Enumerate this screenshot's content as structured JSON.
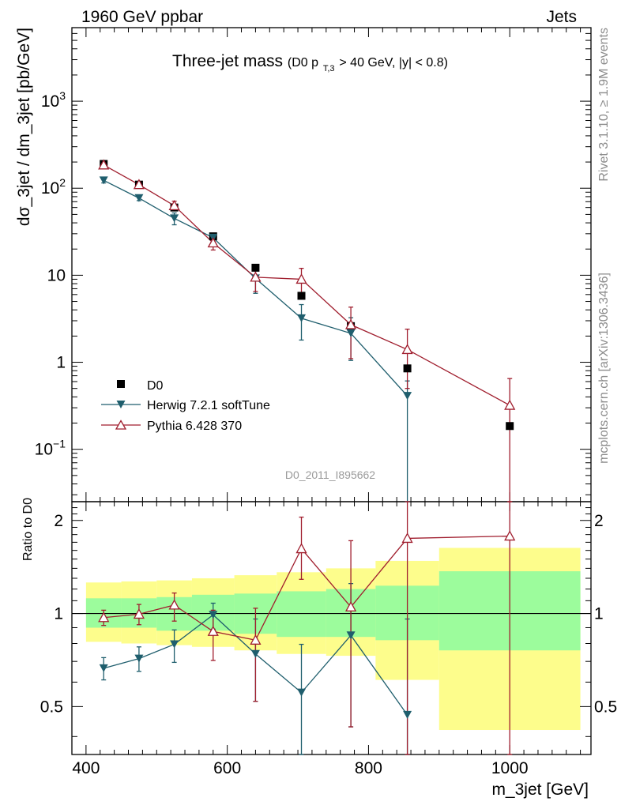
{
  "header": {
    "left": "1960 GeV ppbar",
    "right": "Jets",
    "side_right_top": "Rivet 3.1.10, ≥ 1.9M events",
    "side_right_bottom": "mcplots.cern.ch [arXiv:1306.3436]"
  },
  "chart_data": {
    "type": "scatter",
    "title": "Three-jet mass",
    "subtitle_prefix": "(D0 p",
    "subtitle_sub": "T,3",
    "subtitle_suffix": " > 40 GeV, |y| < 0.8)",
    "xlabel": "m_3jet [GeV]",
    "ylabel": "dσ_3jet / dm_3jet [pb/GeV]",
    "ratio_ylabel": "Ratio to D0",
    "watermark": "D0_2011_I895662",
    "xlim": [
      380,
      1115
    ],
    "ylim_main": [
      0.025,
      7000
    ],
    "ylim_ratio": [
      0.35,
      2.3
    ],
    "x_ticks": [
      400,
      600,
      800,
      1000
    ],
    "x_tick_labels": [
      "400",
      "600",
      "800",
      "1000"
    ],
    "y_main_ticks": [
      {
        "value": 1000,
        "base": "10",
        "exp": "3"
      },
      {
        "value": 100,
        "base": "10",
        "exp": "2"
      },
      {
        "value": 10,
        "label": "10"
      },
      {
        "value": 1,
        "label": "1"
      },
      {
        "value": 0.1,
        "base": "10",
        "exp": "−1"
      }
    ],
    "y_ratio_ticks": [
      {
        "value": 2,
        "label": "2"
      },
      {
        "value": 1,
        "label": "1"
      },
      {
        "value": 0.5,
        "label": "0.5"
      }
    ],
    "legend": {
      "position": "lower-left"
    },
    "bin_edges": [
      400,
      450,
      500,
      550,
      610,
      670,
      740,
      810,
      900,
      1100
    ],
    "series": [
      {
        "name": "D0",
        "color": "#000000",
        "marker": "square",
        "x": [
          425,
          475,
          525,
          580,
          640,
          705,
          775,
          855,
          1000
        ],
        "y": [
          190,
          110,
          60,
          28,
          12.2,
          5.8,
          2.6,
          0.85,
          0.185
        ]
      },
      {
        "name": "Herwig 7.2.1 softTune",
        "color": "#1f5e6d",
        "marker": "triangle-down",
        "x": [
          425,
          475,
          525,
          580,
          640,
          705,
          775,
          855
        ],
        "y": [
          123,
          77,
          45,
          27,
          9.2,
          3.2,
          2.15,
          0.41
        ],
        "err_lo": [
          8,
          5,
          7,
          2.5,
          3,
          1.4,
          1.1,
          0.4
        ],
        "err_hi": [
          8,
          5,
          7,
          2.5,
          3,
          1.4,
          1.1,
          0.2
        ],
        "ratio": [
          0.665,
          0.715,
          0.795,
          0.99,
          0.74,
          0.555,
          0.85,
          0.47
        ],
        "ratio_err_lo": [
          0.055,
          0.065,
          0.1,
          0.1,
          0.22,
          0.22,
          0.42,
          0.2
        ],
        "ratio_err_hi": [
          0.055,
          0.065,
          0.09,
          0.09,
          0.22,
          0.24,
          0.4,
          0.49
        ]
      },
      {
        "name": "Pythia 6.428 370",
        "color": "#a01e2e",
        "marker": "triangle-up-open",
        "x": [
          425,
          475,
          525,
          580,
          640,
          705,
          775,
          1000,
          855
        ],
        "y": [
          185,
          110,
          63,
          23.5,
          9.5,
          9.0,
          2.7,
          0.32,
          1.4
        ],
        "err_lo": [
          10,
          8,
          8,
          4,
          3,
          3,
          1.6,
          0.32,
          0.9
        ],
        "err_hi": [
          10,
          8,
          8,
          4,
          3,
          3,
          1.6,
          0.33,
          1.0
        ],
        "ratio": [
          0.97,
          0.995,
          1.065,
          0.875,
          0.82,
          1.62,
          1.05,
          1.78,
          1.75
        ],
        "ratio_err_lo": [
          0.055,
          0.075,
          0.12,
          0.17,
          0.3,
          0.33,
          0.62,
          1.5,
          1.4
        ],
        "ratio_err_hi": [
          0.055,
          0.075,
          0.1,
          0.15,
          0.22,
          0.43,
          0.67,
          1.0,
          1.0
        ]
      }
    ],
    "band_green": [
      [
        0.9,
        1.12
      ],
      [
        0.9,
        1.12
      ],
      [
        0.88,
        1.13
      ],
      [
        0.88,
        1.15
      ],
      [
        0.86,
        1.16
      ],
      [
        0.84,
        1.18
      ],
      [
        0.84,
        1.2
      ],
      [
        0.82,
        1.23
      ],
      [
        0.76,
        1.37
      ]
    ],
    "band_yellow": [
      [
        0.81,
        1.26
      ],
      [
        0.8,
        1.27
      ],
      [
        0.79,
        1.28
      ],
      [
        0.78,
        1.3
      ],
      [
        0.76,
        1.33
      ],
      [
        0.74,
        1.36
      ],
      [
        0.73,
        1.4
      ],
      [
        0.61,
        1.48
      ],
      [
        0.42,
        1.63
      ]
    ]
  }
}
